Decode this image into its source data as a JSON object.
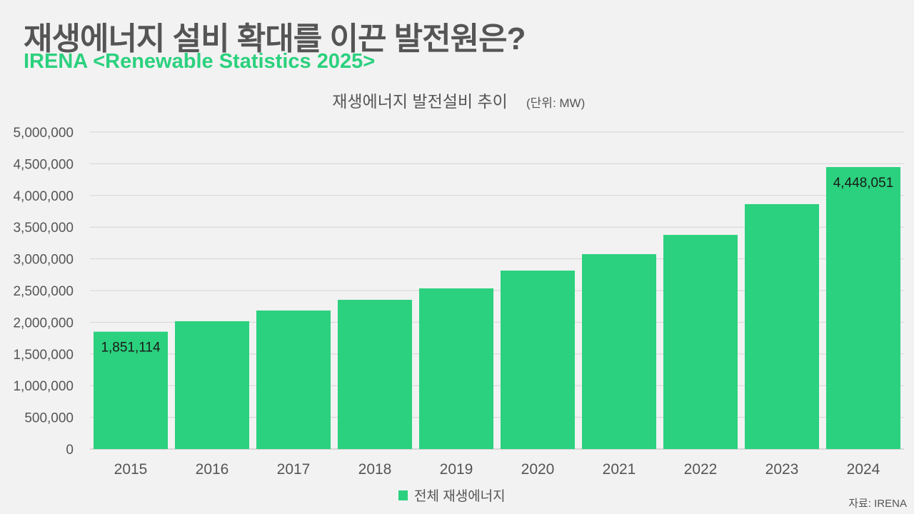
{
  "header": {
    "title": "재생에너지 설비 확대를 이끈 발전원은?",
    "subtitle": "IRENA <Renewable Statistics 2025>"
  },
  "source": "자료: IRENA",
  "colors": {
    "bar": "#2bd17e",
    "title": "#555555",
    "subtitle": "#2bd17e",
    "grid": "#d4d4d4"
  },
  "chart_data": {
    "type": "bar",
    "title": "재생에너지 발전설비 추이",
    "title_unit": "(단위: MW)",
    "categories": [
      "2015",
      "2016",
      "2017",
      "2018",
      "2019",
      "2020",
      "2021",
      "2022",
      "2023",
      "2024"
    ],
    "series": [
      {
        "name": "전체 재생에너지",
        "values": [
          1851114,
          2016000,
          2185000,
          2354000,
          2534000,
          2815000,
          3074000,
          3378000,
          3863000,
          4448051
        ]
      }
    ],
    "data_labels": [
      {
        "category": "2015",
        "text": "1,851,114"
      },
      {
        "category": "2024",
        "text": "4,448,051"
      }
    ],
    "ylim": [
      0,
      5000000
    ],
    "yticks": [
      "0",
      "500,000",
      "1,000,000",
      "1,500,000",
      "2,000,000",
      "2,500,000",
      "3,000,000",
      "3,500,000",
      "4,000,000",
      "4,500,000",
      "5,000,000"
    ],
    "grid": true,
    "legend": "bottom"
  }
}
